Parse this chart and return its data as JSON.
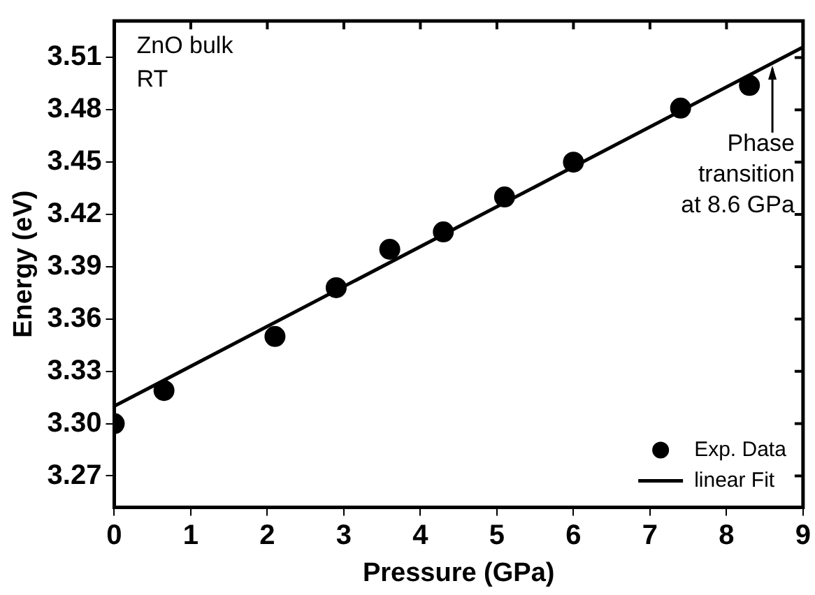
{
  "chart_data": {
    "type": "scatter",
    "xlabel": "Pressure (GPa)",
    "ylabel": "Energy (eV)",
    "xlim": [
      0,
      9
    ],
    "ylim": [
      3.252,
      3.531
    ],
    "xticks": [
      0,
      1,
      2,
      3,
      4,
      5,
      6,
      7,
      8,
      9
    ],
    "yticks": [
      3.27,
      {
        "value": 3.3,
        "label": "3.30"
      },
      3.33,
      3.36,
      3.39,
      3.42,
      3.45,
      3.48,
      3.51
    ],
    "series": [
      {
        "name": "Exp. Data",
        "color": "#000000",
        "marker": "circle",
        "x": [
          0,
          0.65,
          2.1,
          2.9,
          3.6,
          4.3,
          5.1,
          6.0,
          7.4,
          8.3
        ],
        "values": [
          3.3,
          3.319,
          3.35,
          3.378,
          3.4,
          3.41,
          3.43,
          3.45,
          3.481,
          3.494
        ]
      },
      {
        "name": "linear Fit",
        "color": "#000000",
        "type": "line",
        "marker": "none",
        "line_style": "solid",
        "x": [
          0,
          9
        ],
        "values": [
          3.31,
          3.516
        ]
      }
    ],
    "annotations": [
      "ZnO bulk",
      "RT",
      {
        "text": "Phase\ntransition\nat 8.6 GPa",
        "x": 8.6,
        "y": 3.507
      }
    ],
    "grid": false,
    "legend": "bottom right"
  }
}
